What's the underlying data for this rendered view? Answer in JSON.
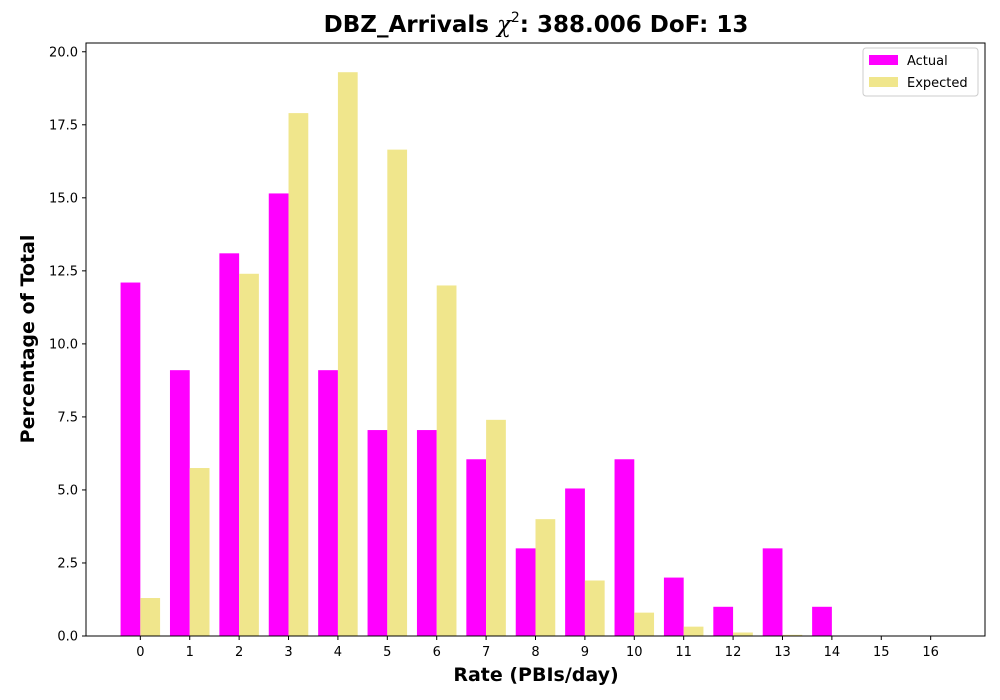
{
  "chart_data": {
    "type": "bar",
    "title": "DBZ_Arrivals χ²: 388.006 DoF: 13",
    "title_parts": {
      "prefix": "DBZ_Arrivals ",
      "symbol": "χ",
      "superscript": "2",
      "suffix": ": 388.006 DoF: 13"
    },
    "xlabel": "Rate (PBIs/day)",
    "ylabel": "Percentage of Total",
    "categories": [
      0,
      1,
      2,
      3,
      4,
      5,
      6,
      7,
      8,
      9,
      10,
      11,
      12,
      13,
      14,
      15,
      16
    ],
    "series": [
      {
        "name": "Actual",
        "color": "#ff00ff",
        "values": [
          12.1,
          9.1,
          13.1,
          15.15,
          9.1,
          7.05,
          7.05,
          6.05,
          3.0,
          5.05,
          6.05,
          2.0,
          1.0,
          3.0,
          1.0,
          0,
          0
        ]
      },
      {
        "name": "Expected",
        "color": "#f0e68c",
        "values": [
          1.3,
          5.75,
          12.4,
          17.9,
          19.3,
          16.65,
          12.0,
          7.4,
          4.0,
          1.9,
          0.8,
          0.32,
          0.12,
          0.04,
          0.01,
          0,
          0
        ]
      }
    ],
    "yticks": [
      "0.0",
      "2.5",
      "5.0",
      "7.5",
      "10.0",
      "12.5",
      "15.0",
      "17.5",
      "20.0"
    ],
    "ylim": [
      0,
      20.3
    ],
    "xlim": [
      -1.1,
      17.1
    ],
    "grid": false,
    "legend_position": "top-right"
  }
}
